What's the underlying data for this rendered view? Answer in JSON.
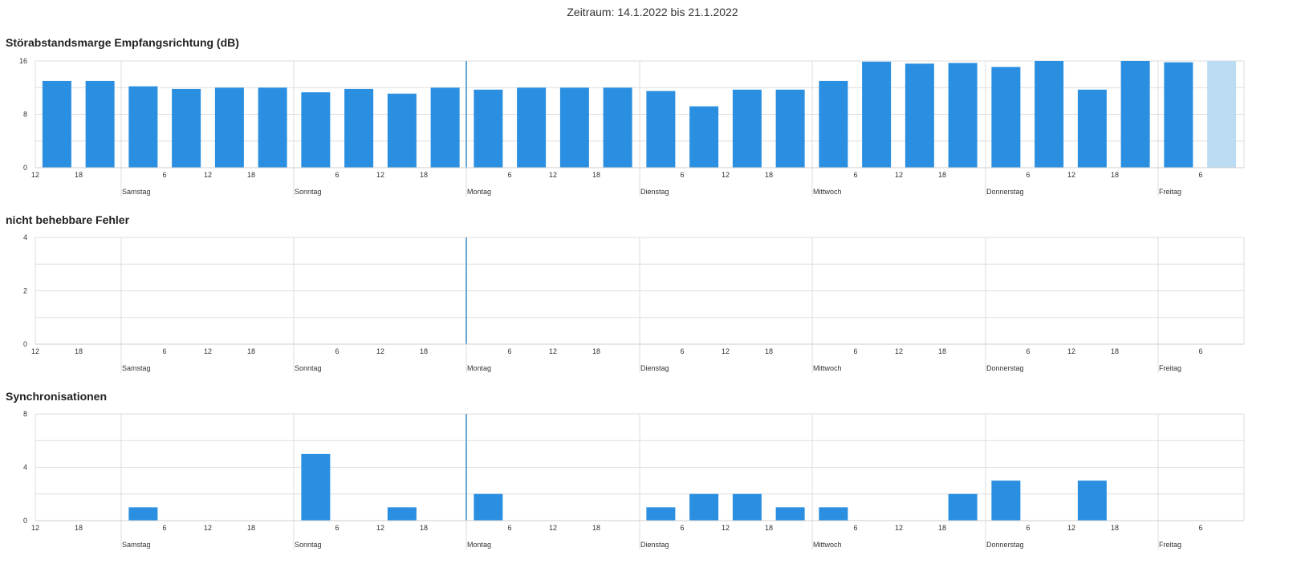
{
  "period_label": "Zeitraum: 14.1.2022 bis 21.1.2022",
  "colors": {
    "bar": "#2a8fe0",
    "bar_light": "#bcdcf4",
    "grid": "#dddddd",
    "now_line": "#6aa7d4"
  },
  "x_axis": {
    "hour_ticks": [
      "12",
      "18",
      "6",
      "12",
      "18",
      "6",
      "12",
      "18",
      "6",
      "12",
      "18",
      "6",
      "12",
      "18",
      "6",
      "12",
      "18",
      "6",
      "12",
      "18",
      "6"
    ],
    "days": [
      "Samstag",
      "Sonntag",
      "Montag",
      "Dienstag",
      "Mittwoch",
      "Donnerstag",
      "Freitag"
    ]
  },
  "chart_data": [
    {
      "type": "bar",
      "title": "Störabstandsmarge Empfangsrichtung (dB)",
      "ylim": [
        0,
        16
      ],
      "yticks": [
        "16",
        "8",
        "0"
      ],
      "values": [
        13,
        13,
        12.2,
        11.8,
        12,
        12,
        11.3,
        11.8,
        11.1,
        12,
        11.7,
        12,
        12,
        12,
        11.5,
        9.2,
        11.7,
        11.7,
        13,
        15.9,
        15.6,
        15.7,
        15.1,
        16,
        11.7,
        16,
        15.8,
        16
      ],
      "highlight_last": true
    },
    {
      "type": "bar",
      "title": "nicht behebbare Fehler",
      "ylim": [
        0,
        4
      ],
      "yticks": [
        "4",
        "2",
        "0"
      ],
      "values": [
        0,
        0,
        0,
        0,
        0,
        0,
        0,
        0,
        0,
        0,
        0,
        0,
        0,
        0,
        0,
        0,
        0,
        0,
        0,
        0,
        0,
        0,
        0,
        0,
        0,
        0,
        0,
        0
      ]
    },
    {
      "type": "bar",
      "title": "Synchronisationen",
      "ylim": [
        0,
        8
      ],
      "yticks": [
        "8",
        "4",
        "0"
      ],
      "values": [
        0,
        0,
        1,
        0,
        0,
        0,
        5,
        0,
        1,
        0,
        2,
        0,
        0,
        0,
        1,
        2,
        2,
        1,
        1,
        0,
        0,
        2,
        3,
        0,
        3,
        0,
        0,
        0
      ]
    }
  ]
}
